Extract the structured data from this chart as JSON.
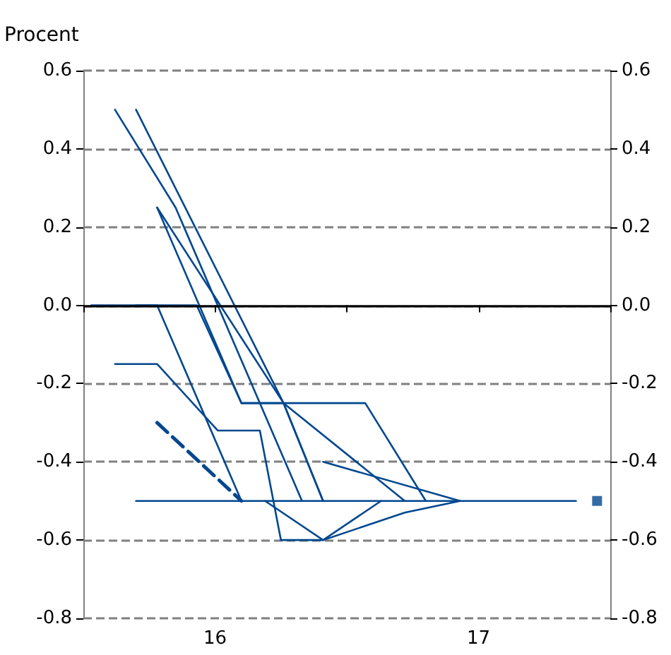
{
  "chart_data": {
    "type": "line",
    "ylabel": "Procent",
    "xlim": [
      15.5,
      17.5
    ],
    "xticks": [
      {
        "value": 15.5,
        "label": null
      },
      16,
      {
        "value": 16.5,
        "label": null
      },
      17,
      {
        "value": 17.5,
        "label": null
      }
    ],
    "ylim": [
      -0.8,
      0.6
    ],
    "yticks": [
      -0.8,
      -0.6,
      -0.4,
      -0.2,
      {
        "value": 0,
        "label": "0.0"
      },
      0.2,
      0.4,
      0.6
    ],
    "y2lim": [
      -0.8,
      0.6
    ],
    "y2ticks": [
      -0.8,
      -0.6,
      -0.4,
      -0.2,
      {
        "value": 0,
        "label": "0.0"
      },
      0.2,
      0.4,
      0.6
    ],
    "grid": "y",
    "marker": "none",
    "line_style": "solid",
    "ref_lines": [
      {
        "axis": "y",
        "value": 0,
        "label": null,
        "color": "#000000",
        "line_style": "solid"
      }
    ],
    "series": [
      {
        "color": "#00478f",
        "x": [
          15.53,
          15.93,
          16.1,
          16.26,
          16.41
        ],
        "values": [
          0,
          0,
          -0.25,
          -0.25,
          -0.5
        ]
      },
      {
        "color": "#00478f",
        "x": [
          15.7,
          17.37
        ],
        "values": [
          -0.5,
          -0.5
        ]
      },
      {
        "color": "#00478f",
        "x": [
          15.62,
          15.85,
          16.33
        ],
        "values": [
          0.5,
          0.25,
          -0.5
        ]
      },
      {
        "color": "#00478f",
        "x": [
          15.7,
          16.26,
          16.41
        ],
        "values": [
          0.5,
          -0.25,
          -0.5
        ]
      },
      {
        "color": "#00478f",
        "x": [
          15.78,
          16.26,
          16.72
        ],
        "values": [
          0.25,
          -0.25,
          -0.5
        ]
      },
      {
        "color": "#00478f",
        "x": [
          15.78,
          16.1,
          16.57,
          16.8
        ],
        "values": [
          0.25,
          -0.25,
          -0.25,
          -0.5
        ]
      },
      {
        "color": "#00478f",
        "x": [
          15.62,
          15.78,
          16.01,
          16.17,
          16.25,
          16.41,
          16.63
        ],
        "values": [
          -0.15,
          -0.15,
          -0.32,
          -0.32,
          -0.6,
          -0.6,
          -0.5
        ]
      },
      {
        "color": "#00478f",
        "line_style": "dashed",
        "x": [
          15.78,
          16.1
        ],
        "values": [
          -0.3,
          -0.5
        ]
      },
      {
        "color": "#00478f",
        "x": [
          16.41,
          16.93
        ],
        "values": [
          -0.4,
          -0.5
        ]
      },
      {
        "color": "#00478f",
        "x": [
          15.7,
          15.78,
          16.1
        ],
        "values": [
          0,
          0,
          -0.5
        ]
      },
      {
        "color": "#00478f",
        "x": [
          16.19,
          16.41,
          16.72,
          16.93
        ],
        "values": [
          -0.5,
          -0.6,
          -0.53,
          -0.5
        ]
      },
      {
        "type": "scatter",
        "marker": "square",
        "color": "#00478f",
        "x": [
          17.45
        ],
        "values": [
          -0.5
        ]
      }
    ]
  }
}
